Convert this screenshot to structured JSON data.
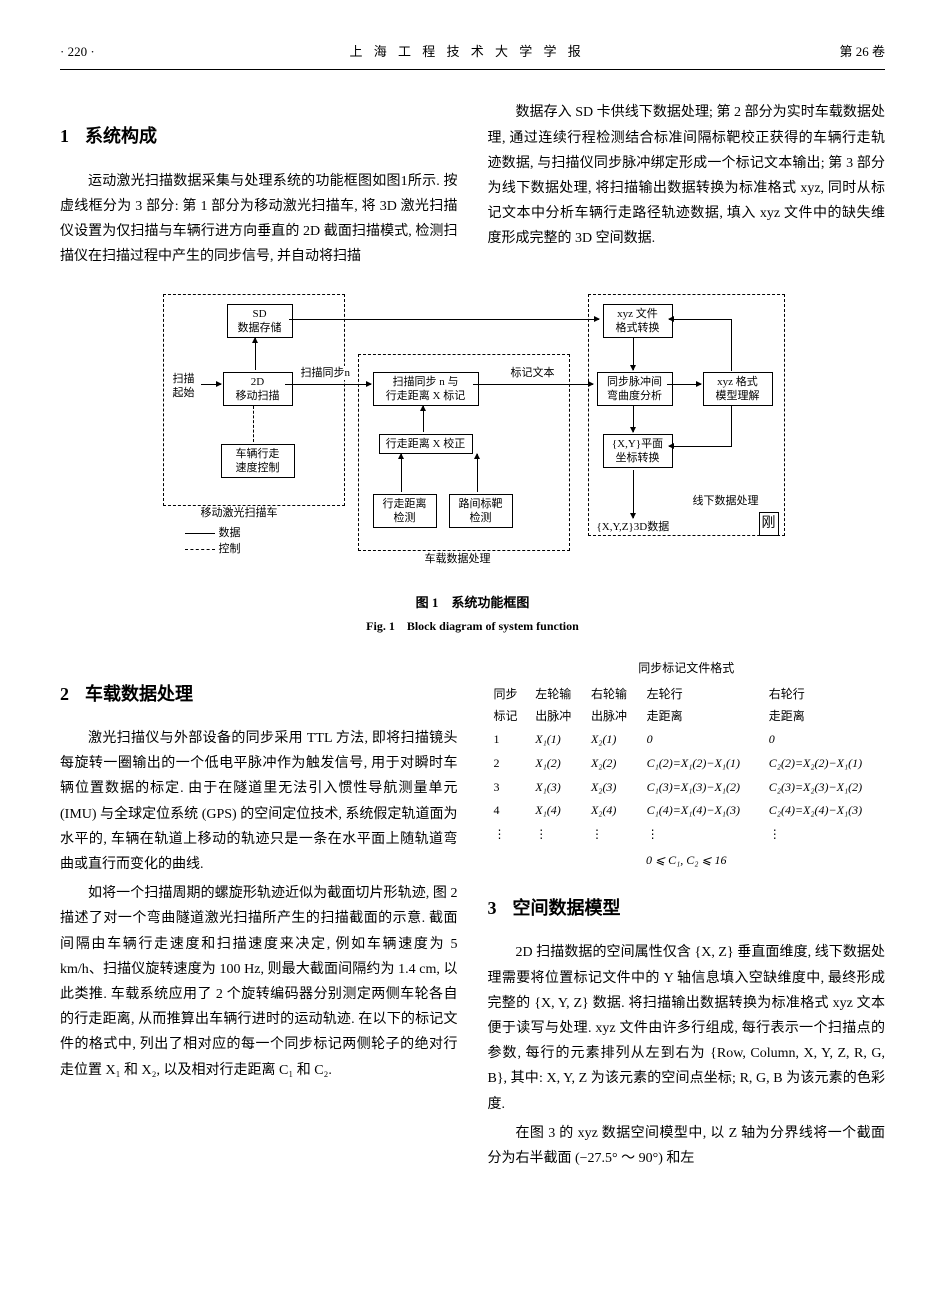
{
  "header": {
    "left": "· 220 ·",
    "center": "上 海 工 程 技 术 大 学 学 报",
    "right": "第 26 卷"
  },
  "sec1": {
    "title_num": "1",
    "title": "系统构成",
    "p1": "运动激光扫描数据采集与处理系统的功能框图如图1所示. 按虚线框分为 3 部分: 第 1 部分为移动激光扫描车, 将 3D 激光扫描仪设置为仅扫描与车辆行进方向垂直的 2D 截面扫描模式, 检测扫描仪在扫描过程中产生的同步信号, 并自动将扫描",
    "p2": "数据存入 SD 卡供线下数据处理; 第 2 部分为实时车载数据处理, 通过连续行程检测结合标准间隔标靶校正获得的车辆行走轨迹数据, 与扫描仪同步脉冲绑定形成一个标记文本输出; 第 3 部分为线下数据处理, 将扫描输出数据转换为标准格式 xyz, 同时从标记文本中分析车辆行走路径轨迹数据, 填入 xyz 文件中的缺失维度形成完整的 3D 空间数据."
  },
  "fig1": {
    "caption_cn": "图 1　系统功能框图",
    "caption_en": "Fig. 1　Block diagram of system function",
    "group1_label": "移动激光扫描车",
    "group2_label": "车载数据处理",
    "group3_label": "线下数据处理",
    "legend_data": "数据",
    "legend_ctrl": "控制",
    "n_start": "扫描\n起始",
    "n_sd": "SD\n数据存储",
    "n_2d": "2D\n移动扫描",
    "n_speed": "车辆行走\n速度控制",
    "lbl_sync_n": "扫描同步n",
    "n_mark": "扫描同步 n 与\n行走距离 X 标记",
    "n_correct": "行走距离 X 校正",
    "n_walk": "行走距离\n检测",
    "n_target": "路间标靶\n检测",
    "lbl_marktxt": "标记文本",
    "n_xyzfile": "xyz 文件\n格式转换",
    "n_curv": "同步脉冲间\n弯曲度分析",
    "n_model": "xyz 格式\n模型理解",
    "n_plane": "{X,Y}平面\n坐标转换",
    "lbl_xyz3d": "{X,Y,Z}3D数据",
    "delete_glyph": "刚"
  },
  "sec2": {
    "title_num": "2",
    "title": "车载数据处理",
    "p1": "激光扫描仪与外部设备的同步采用 TTL 方法, 即将扫描镜头每旋转一圈输出的一个低电平脉冲作为触发信号, 用于对瞬时车辆位置数据的标定. 由于在隧道里无法引入惯性导航测量单元 (IMU) 与全球定位系统 (GPS) 的空间定位技术, 系统假定轨道面为水平的, 车辆在轨道上移动的轨迹只是一条在水平面上随轨道弯曲或直行而变化的曲线.",
    "p2": "如将一个扫描周期的螺旋形轨迹近似为截面切片形轨迹, 图 2 描述了对一个弯曲隧道激光扫描所产生的扫描截面的示意. 截面间隔由车辆行走速度和扫描速度来决定, 例如车辆速度为 5 km/h、扫描仪旋转速度为 100 Hz, 则最大截面间隔约为 1.4 cm, 以此类推. 车载系统应用了 2 个旋转编码器分别测定两侧车轮各自的行走距离, 从而推算出车辆行进时的运动轨迹. 在以下的标记文件的格式中, 列出了相对应的每一个同步标记两侧轮子的绝对行走位置 X₁ 和 X₂, 以及相对行走距离 C₁ 和 C₂."
  },
  "table": {
    "title": "同步标记文件格式",
    "h_sync": "同步\n标记",
    "h_lpulse": "左轮输\n出脉冲",
    "h_rpulse": "右轮输\n出脉冲",
    "h_ldist": "左轮行\n走距离",
    "h_rdist": "右轮行\n走距离",
    "rows": [
      {
        "i": "1",
        "x1": "X₁(1)",
        "x2": "X₂(1)",
        "c1": "0",
        "c2": "0"
      },
      {
        "i": "2",
        "x1": "X₁(2)",
        "x2": "X₂(2)",
        "c1": "C₁(2)=X₁(2)−X₁(1)",
        "c2": "C₂(2)=X₂(2)−X₁(1)"
      },
      {
        "i": "3",
        "x1": "X₁(3)",
        "x2": "X₂(3)",
        "c1": "C₁(3)=X₁(3)−X₁(2)",
        "c2": "C₂(3)=X₂(3)−X₁(2)"
      },
      {
        "i": "4",
        "x1": "X₁(4)",
        "x2": "X₂(4)",
        "c1": "C₁(4)=X₁(4)−X₁(3)",
        "c2": "C₂(4)=X₂(4)−X₁(3)"
      }
    ],
    "dots": "⋮",
    "constraint": "0 ⩽ C₁, C₂ ⩽ 16"
  },
  "sec3": {
    "title_num": "3",
    "title": "空间数据模型",
    "p1": "2D 扫描数据的空间属性仅含 {X, Z} 垂直面维度, 线下数据处理需要将位置标记文件中的 Y 轴信息填入空缺维度中, 最终形成完整的 {X, Y, Z} 数据. 将扫描输出数据转换为标准格式 xyz 文本便于读写与处理. xyz 文件由许多行组成, 每行表示一个扫描点的参数, 每行的元素排列从左到右为 {Row, Column, X, Y, Z, R, G, B}, 其中: X, Y, Z 为该元素的空间点坐标; R, G, B 为该元素的色彩度.",
    "p2": "在图 3 的 xyz 数据空间模型中, 以 Z 轴为分界线将一个截面分为右半截面 (−27.5° ～ 90°) 和左"
  }
}
